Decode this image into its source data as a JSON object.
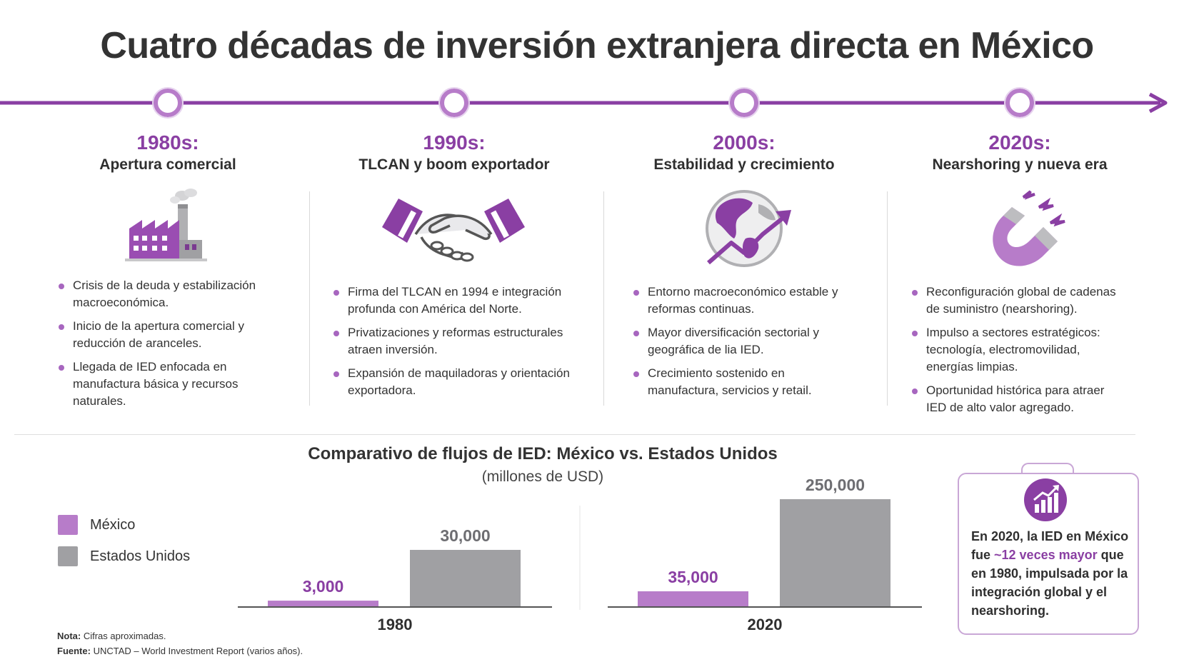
{
  "title": "Cuatro décadas de inversión extranjera directa en México",
  "colors": {
    "accent": "#8a3fa3",
    "mexico": "#b77cc9",
    "usa": "#a0a0a3"
  },
  "eras": [
    {
      "year": "1980s:",
      "subtitle": "Apertura comercial",
      "icon": "factory-icon",
      "bullets": [
        "Crisis de la deuda y estabilización macroeconómica.",
        "Inicio de la apertura comercial y reducción de aranceles.",
        "Llegada de IED enfocada en manufactura básica y recursos naturales."
      ]
    },
    {
      "year": "1990s:",
      "subtitle": "TLCAN y boom exportador",
      "icon": "handshake-icon",
      "bullets": [
        "Firma del TLCAN en 1994 e integración profunda con América del Norte.",
        "Privatizaciones y reformas estructurales atraen inversión.",
        "Expansión de maquiladoras y orientación exportadora."
      ]
    },
    {
      "year": "2000s:",
      "subtitle": "Estabilidad y crecimiento",
      "icon": "globe-growth-icon",
      "bullets": [
        "Entorno macroeconómico estable y reformas continuas.",
        "Mayor diversificación sectorial y geográfica de lia IED.",
        "Crecimiento sostenido en manufactura, servicios y retail."
      ]
    },
    {
      "year": "2020s:",
      "subtitle": "Nearshoring y nueva era",
      "icon": "magnet-icon",
      "bullets": [
        "Reconfiguración global de cadenas de suministro (nearshoring).",
        "Impulso a sectores estratégicos: tecnología, electromovilidad, energías limpias.",
        "Oportunidad histórica para atraer IED de alto valor agregado."
      ]
    }
  ],
  "chart_data": {
    "type": "bar",
    "title": "Comparativo de flujos de IED: México vs. Estados Unidos",
    "subtitle": "(millones de USD)",
    "categories": [
      "1980",
      "2020"
    ],
    "series": [
      {
        "name": "México",
        "values": [
          3000,
          35000
        ],
        "labels": [
          "3,000",
          "35,000"
        ],
        "color": "#b77cc9"
      },
      {
        "name": "Estados Unidos",
        "values": [
          30000,
          250000
        ],
        "labels": [
          "30,000",
          "250,000"
        ],
        "color": "#a0a0a3"
      }
    ],
    "legend_position": "left",
    "grid": false
  },
  "callout": {
    "icon": "growth-chart-icon",
    "text_before": "En 2020, la IED en México fue ",
    "highlight": "~12 veces mayor",
    "text_after": " que en 1980, impulsada por la integración global y el nearshoring."
  },
  "footer": {
    "note_label": "Nota:",
    "note": " Cifras aproximadas.",
    "source_label": "Fuente:",
    "source": " UNCTAD – World Investment Report (varios años)."
  }
}
